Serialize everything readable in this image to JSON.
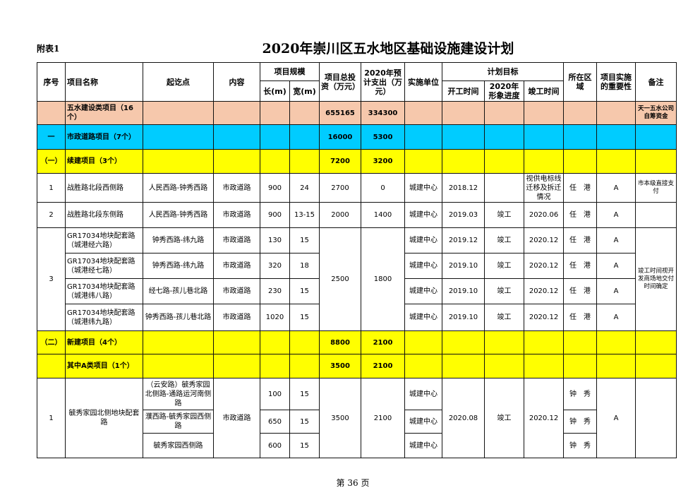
{
  "fig_label": "附表1",
  "title": "2020年崇川区五水地区基础设施建设计划",
  "page": "第 36 页",
  "colors": {
    "peach": "#f6c8ac",
    "blue": "#00ccff",
    "yellow": "#ffff00"
  },
  "header": {
    "seq": "序号",
    "name": "项目名称",
    "route": "起讫点",
    "content": "内容",
    "scale": "项目规模",
    "length": "长(m)",
    "width": "宽(m)",
    "invest": "项目总投资（万元）",
    "spend": "2020年预计支出（万元）",
    "unit": "实施单位",
    "plan": "计划目标",
    "start": "开工时间",
    "progress": "2020年形象进度",
    "finish": "竣工时间",
    "area": "所在区域",
    "importance": "项目实施的重要性",
    "remark": "备注"
  },
  "total": {
    "name": "五水建设类项目（16个）",
    "invest": "655165",
    "spend": "334300",
    "remark": "天一五水公司自筹资金"
  },
  "road": {
    "seq": "一",
    "name": "市政道路项目（7个）",
    "invest": "16000",
    "spend": "5300"
  },
  "cont": {
    "seq": "（一）",
    "name": "续建项目（3个）",
    "invest": "7200",
    "spend": "3200"
  },
  "p1": {
    "seq": "1",
    "name": "战胜路北段西侧路",
    "route": "人民西路-钟秀西路",
    "content": "市政道路",
    "length": "900",
    "width": "24",
    "invest": "2700",
    "spend": "0",
    "unit": "城建中心",
    "start": "2018.12",
    "progress": "",
    "finish": "视供电标线迁移及拆迁情况",
    "area": "任　港",
    "importance": "A",
    "remark": "市本级直接支付"
  },
  "p2": {
    "seq": "2",
    "name": "战胜路北段东侧路",
    "route": "人民西路-钟秀西路",
    "content": "市政道路",
    "length": "900",
    "width": "13-15",
    "invest": "2000",
    "spend": "1400",
    "unit": "城建中心",
    "start": "2019.03",
    "progress": "竣工",
    "finish": "2020.06",
    "area": "任　港",
    "importance": "A",
    "remark": ""
  },
  "p3": {
    "seq": "3",
    "invest": "2500",
    "spend": "1800",
    "remark": "竣工时间视开发商场地交付时间确定",
    "subs": [
      {
        "name": "GR17034地块配套路（城港经六路）",
        "route": "钟秀西路-纬九路",
        "content": "市政道路",
        "length": "130",
        "width": "15",
        "unit": "城建中心",
        "start": "2019.12",
        "progress": "竣工",
        "finish": "2020.12",
        "area": "任　港",
        "importance": "A"
      },
      {
        "name": "GR17034地块配套路（城港经七路）",
        "route": "钟秀西路-纬九路",
        "content": "市政道路",
        "length": "320",
        "width": "18",
        "unit": "城建中心",
        "start": "2019.10",
        "progress": "竣工",
        "finish": "2020.12",
        "area": "任　港",
        "importance": "A"
      },
      {
        "name": "GR17034地块配套路（城港纬八路）",
        "route": "经七路-孩儿巷北路",
        "content": "市政道路",
        "length": "230",
        "width": "15",
        "unit": "城建中心",
        "start": "2019.10",
        "progress": "竣工",
        "finish": "2020.12",
        "area": "任　港",
        "importance": "A"
      },
      {
        "name": "GR17034地块配套路（城港纬九路）",
        "route": "钟秀西路-孩儿巷北路",
        "content": "市政道路",
        "length": "1020",
        "width": "15",
        "unit": "城建中心",
        "start": "2019.10",
        "progress": "竣工",
        "finish": "2020.12",
        "area": "任　港",
        "importance": "A"
      }
    ]
  },
  "newp": {
    "seq": "（二）",
    "name": "新建项目（4个）",
    "invest": "8800",
    "spend": "2100"
  },
  "aclass": {
    "name": "其中A类项目（1个）",
    "invest": "3500",
    "spend": "2100"
  },
  "p4": {
    "seq": "1",
    "name": "毓秀家园北侧地块配套路",
    "content": "市政道路",
    "invest": "3500",
    "spend": "2100",
    "start": "2020.08",
    "progress": "竣工",
    "finish": "2020.12",
    "importance": "A",
    "remark": "",
    "subs": [
      {
        "route": "（云安路）毓秀家园北侧路-通路运河南侧路",
        "length": "100",
        "width": "15",
        "unit": "城建中心",
        "area": "钟　秀"
      },
      {
        "route": "濮西路-毓秀家园西侧路",
        "length": "650",
        "width": "15",
        "unit": "城建中心",
        "area": "钟　秀"
      },
      {
        "route": "毓秀家园西侧路",
        "length": "600",
        "width": "15",
        "unit": "城建中心",
        "area": "钟　秀"
      }
    ]
  }
}
